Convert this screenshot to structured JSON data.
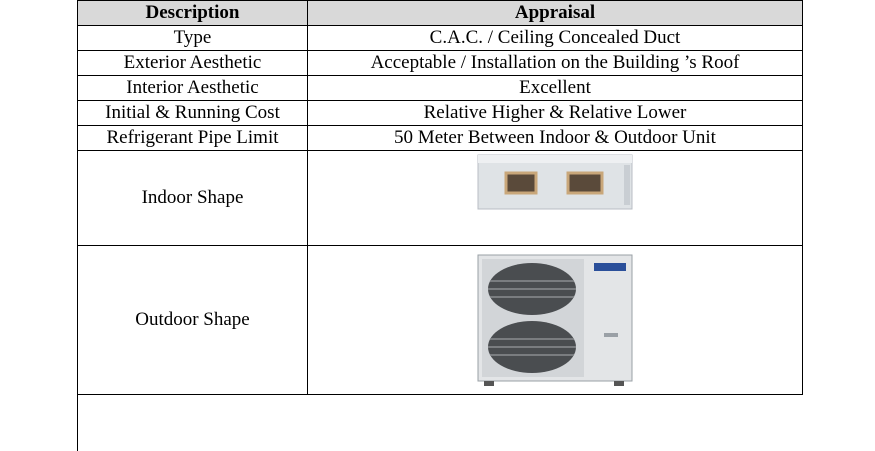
{
  "table": {
    "header": [
      "Description",
      "Appraisal"
    ],
    "rows": [
      [
        "Type",
        "C.A.C. / Ceiling Concealed Duct"
      ],
      [
        "Exterior Aesthetic",
        "Acceptable  / Installation on the Building ’s Roof"
      ],
      [
        "Interior  Aesthetic",
        "Excellent"
      ],
      [
        "Initial & Running Cost",
        "Relative Higher & Relative  Lower"
      ],
      [
        "Refrigerant Pipe Limit",
        "50 Meter Between Indoor & Outdoor Unit"
      ],
      [
        "Indoor Shape"
      ],
      [
        "Outdoor Shape"
      ]
    ]
  }
}
